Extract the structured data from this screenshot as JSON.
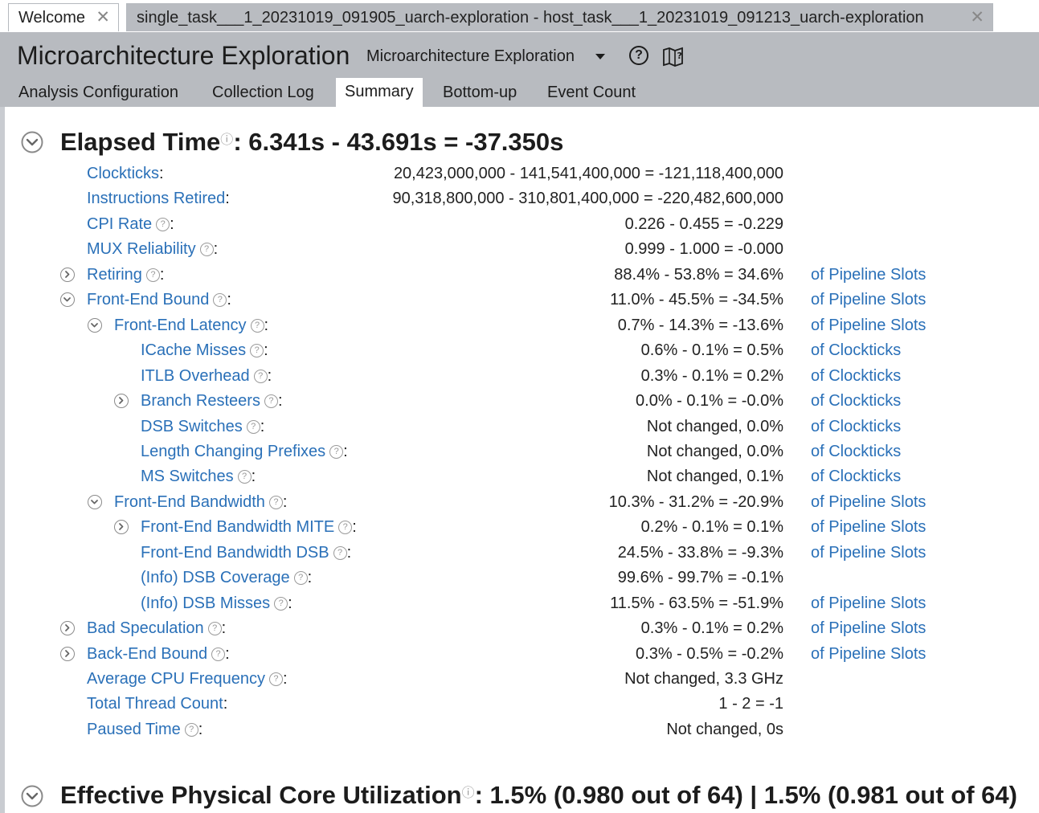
{
  "tabs": {
    "welcome": "Welcome",
    "task": "single_task___1_20231019_091905_uarch-exploration - host_task___1_20231019_091213_uarch-exploration",
    "close_glyph": "✕"
  },
  "header": {
    "title": "Microarchitecture Exploration",
    "viewpoint": "Microarchitecture Exploration",
    "help_glyph": "?",
    "subtabs": [
      "Analysis Configuration",
      "Collection Log",
      "Summary",
      "Bottom-up",
      "Event Count"
    ],
    "active_subtab": "Summary"
  },
  "elapsed": {
    "title": "Elapsed Time",
    "value": ": 6.341s - 43.691s = -37.350s",
    "help_glyph": "?"
  },
  "metrics": [
    {
      "name": "Clockticks",
      "value": "20,423,000,000 - 141,541,400,000 = -121,118,400,000",
      "unit": "",
      "help": false,
      "expander": "none",
      "level": 0
    },
    {
      "name": "Instructions Retired",
      "value": "90,318,800,000 - 310,801,400,000 = -220,482,600,000",
      "unit": "",
      "help": false,
      "expander": "none",
      "level": 0
    },
    {
      "name": "CPI Rate",
      "value": "0.226 - 0.455 = -0.229",
      "unit": "",
      "help": true,
      "expander": "none",
      "level": 0
    },
    {
      "name": "MUX Reliability",
      "value": "0.999 - 1.000 = -0.000",
      "unit": "",
      "help": true,
      "expander": "none",
      "level": 0
    },
    {
      "name": "Retiring",
      "value": "88.4% - 53.8% = 34.6%",
      "unit": "of Pipeline Slots",
      "help": true,
      "expander": "collapsed",
      "level": 0
    },
    {
      "name": "Front-End Bound",
      "value": "11.0% - 45.5% = -34.5%",
      "unit": "of Pipeline Slots",
      "help": true,
      "expander": "expanded",
      "level": 0
    },
    {
      "name": "Front-End Latency",
      "value": "0.7% - 14.3% = -13.6%",
      "unit": "of Pipeline Slots",
      "help": true,
      "expander": "expanded",
      "level": 1
    },
    {
      "name": "ICache Misses",
      "value": "0.6% - 0.1% = 0.5%",
      "unit": "of Clockticks",
      "help": true,
      "expander": "none",
      "level": 2
    },
    {
      "name": "ITLB Overhead",
      "value": "0.3% - 0.1% = 0.2%",
      "unit": "of Clockticks",
      "help": true,
      "expander": "none",
      "level": 2
    },
    {
      "name": "Branch Resteers",
      "value": "0.0% - 0.1% = -0.0%",
      "unit": "of Clockticks",
      "help": true,
      "expander": "collapsed",
      "level": 2
    },
    {
      "name": "DSB Switches",
      "value": "Not changed, 0.0%",
      "unit": "of Clockticks",
      "help": true,
      "expander": "none",
      "level": 2
    },
    {
      "name": "Length Changing Prefixes",
      "value": "Not changed, 0.0%",
      "unit": "of Clockticks",
      "help": true,
      "expander": "none",
      "level": 2
    },
    {
      "name": "MS Switches",
      "value": "Not changed, 0.1%",
      "unit": "of Clockticks",
      "help": true,
      "expander": "none",
      "level": 2
    },
    {
      "name": "Front-End Bandwidth",
      "value": "10.3% - 31.2% = -20.9%",
      "unit": "of Pipeline Slots",
      "help": true,
      "expander": "expanded",
      "level": 1
    },
    {
      "name": "Front-End Bandwidth MITE",
      "value": "0.2% - 0.1% = 0.1%",
      "unit": "of Pipeline Slots",
      "help": true,
      "expander": "collapsed",
      "level": 2
    },
    {
      "name": "Front-End Bandwidth DSB",
      "value": "24.5% - 33.8% = -9.3%",
      "unit": "of Pipeline Slots",
      "help": true,
      "expander": "none",
      "level": 2
    },
    {
      "name": "(Info) DSB Coverage",
      "value": "99.6% - 99.7% = -0.1%",
      "unit": "",
      "help": true,
      "expander": "none",
      "level": 2
    },
    {
      "name": "(Info) DSB Misses",
      "value": "11.5% - 63.5% = -51.9%",
      "unit": "of Pipeline Slots",
      "help": true,
      "expander": "none",
      "level": 2
    },
    {
      "name": "Bad Speculation",
      "value": "0.3% - 0.1% = 0.2%",
      "unit": "of Pipeline Slots",
      "help": true,
      "expander": "collapsed",
      "level": 0
    },
    {
      "name": "Back-End Bound",
      "value": "0.3% - 0.5% = -0.2%",
      "unit": "of Pipeline Slots",
      "help": true,
      "expander": "collapsed",
      "level": 0
    },
    {
      "name": "Average CPU Frequency",
      "value": "Not changed, 3.3 GHz",
      "unit": "",
      "help": true,
      "expander": "none",
      "level": 0
    },
    {
      "name": "Total Thread Count",
      "value": "1 - 2 = -1",
      "unit": "",
      "help": false,
      "expander": "none",
      "level": 0
    },
    {
      "name": "Paused Time",
      "value": "Not changed, 0s",
      "unit": "",
      "help": true,
      "expander": "none",
      "level": 0
    }
  ],
  "utilization": {
    "title": "Effective Physical Core Utilization",
    "value": ": 1.5% (0.980 out of 64) | 1.5% (0.981 out of 64)",
    "help_glyph": "?"
  },
  "help_glyph": "?",
  "colon": ":",
  "colors": {
    "link": "#2a70b8",
    "header_bg": "#b8bbc0",
    "text": "#222222"
  }
}
